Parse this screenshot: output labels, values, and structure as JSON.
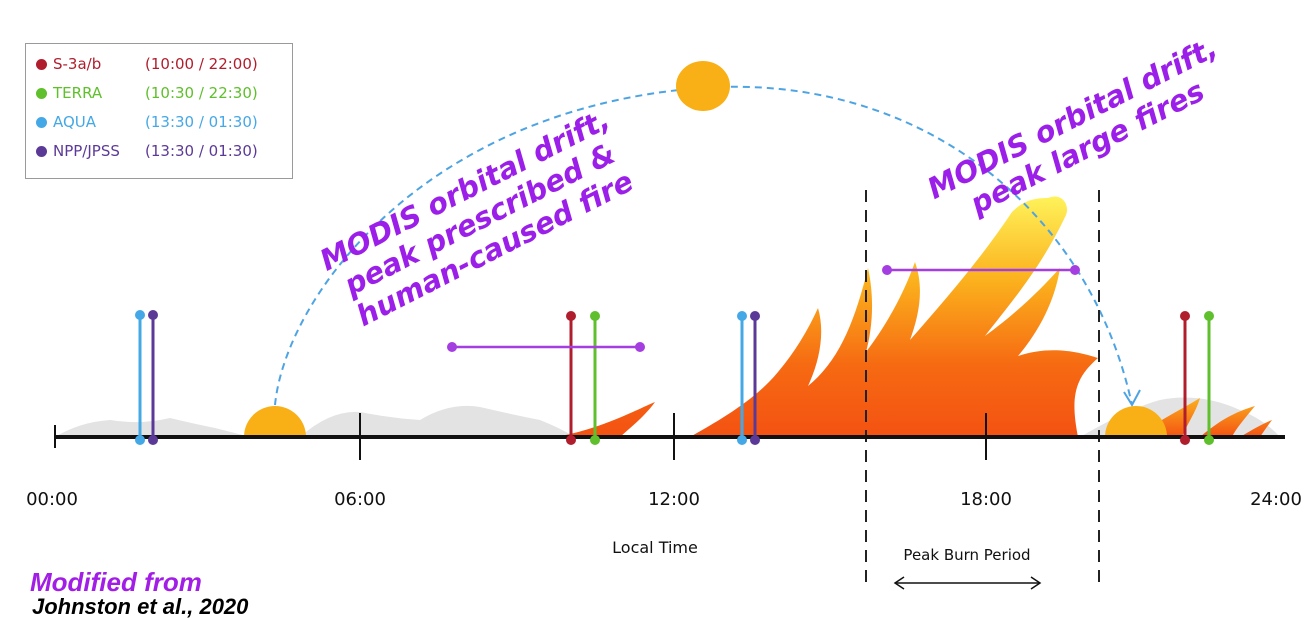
{
  "legend": {
    "items": [
      {
        "name": "S-3a/b",
        "times": "(10:00 / 22:00)",
        "color": "#b01e2e"
      },
      {
        "name": "TERRA",
        "times": "(10:30 / 22:30)",
        "color": "#5fbf2c"
      },
      {
        "name": "AQUA",
        "times": "(13:30 / 01:30)",
        "color": "#45a8e6"
      },
      {
        "name": "NPP/JPSS",
        "times": "(13:30 / 01:30)",
        "color": "#5b3a97"
      }
    ]
  },
  "annotations": {
    "left": {
      "line1": "MODIS orbital drift,",
      "line2": "peak prescribed &",
      "line3": "human-caused fire"
    },
    "right": {
      "line1": "MODIS orbital drift,",
      "line2": "peak large fires"
    }
  },
  "axis": {
    "ticks": [
      "00:00",
      "06:00",
      "12:00",
      "18:00",
      "24:00"
    ],
    "title": "Local Time"
  },
  "peak_burn_label": "Peak Burn Period",
  "credit": {
    "line1": "Modified from",
    "line2": "Johnston et al., 2020"
  },
  "colors": {
    "annotation": "#9b1fe8",
    "fire_outer": "#f45a12",
    "fire_inner": "#ffe84a",
    "sun": "#f9b016",
    "orbit_path": "#4ea4e3"
  }
}
